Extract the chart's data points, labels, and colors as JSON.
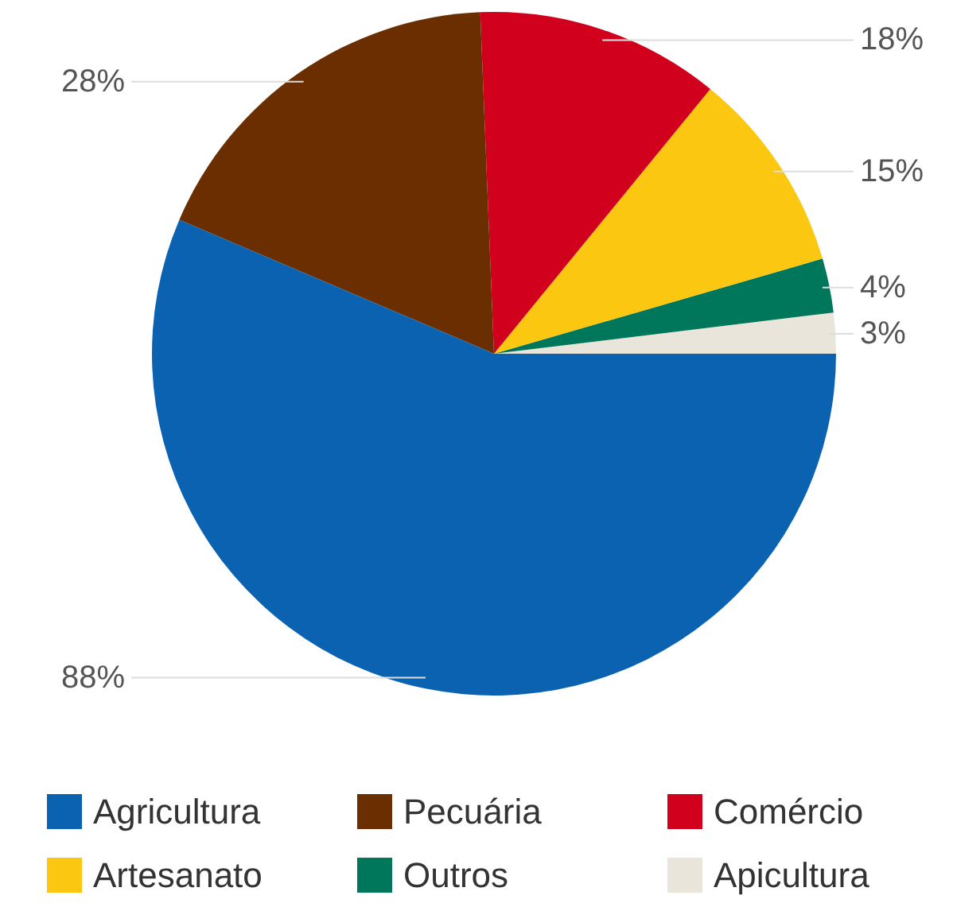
{
  "chart_data": {
    "type": "pie",
    "categories": [
      "Agricultura",
      "Pecuária",
      "Comércio",
      "Artesanato",
      "Outros",
      "Apicultura"
    ],
    "values": [
      88,
      28,
      18,
      15,
      4,
      3
    ],
    "colors": [
      "#0b62b1",
      "#6a2e00",
      "#d1001c",
      "#fcc711",
      "#00775b",
      "#e9e5da"
    ],
    "value_labels": [
      "88%",
      "28%",
      "18%",
      "15%",
      "4%",
      "3%"
    ],
    "legend": "bottom"
  }
}
